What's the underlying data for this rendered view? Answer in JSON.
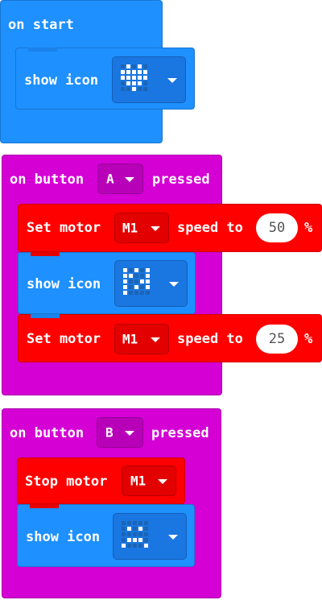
{
  "colors": {
    "basic_blue": "#1e90ff",
    "input_purple": "#d400d4",
    "motor_red": "#ff0000",
    "dropdown_blue": "#1a76e0",
    "dropdown_red": "#e30000",
    "dropdown_purple": "#b800b8"
  },
  "on_start": {
    "label": "on start",
    "show_icon": {
      "label": "show icon",
      "icon": "heart-icon",
      "pattern": [
        [
          0,
          1,
          0,
          1,
          0
        ],
        [
          1,
          1,
          1,
          1,
          1
        ],
        [
          1,
          1,
          1,
          1,
          1
        ],
        [
          0,
          1,
          1,
          1,
          0
        ],
        [
          0,
          0,
          1,
          0,
          0
        ]
      ]
    }
  },
  "button_a": {
    "prefix": "on button",
    "button": "A",
    "suffix": "pressed",
    "set_motor_1": {
      "label": "Set motor",
      "motor": "M1",
      "speed_label": "speed to",
      "speed": "50",
      "unit": "%"
    },
    "show_icon": {
      "label": "show icon",
      "icon": "custom-pattern-icon",
      "pattern": [
        [
          1,
          0,
          1,
          0,
          1
        ],
        [
          1,
          1,
          0,
          0,
          1
        ],
        [
          1,
          0,
          0,
          1,
          1
        ],
        [
          1,
          0,
          1,
          0,
          1
        ],
        [
          1,
          0,
          0,
          0,
          0
        ]
      ]
    },
    "set_motor_2": {
      "label": "Set motor",
      "motor": "M1",
      "speed_label": "speed to",
      "speed": "25",
      "unit": "%"
    }
  },
  "button_b": {
    "prefix": "on button",
    "button": "B",
    "suffix": "pressed",
    "stop_motor": {
      "label": "Stop motor",
      "motor": "M1"
    },
    "show_icon": {
      "label": "show icon",
      "icon": "sad-face-icon",
      "pattern": [
        [
          0,
          0,
          0,
          0,
          0
        ],
        [
          0,
          1,
          0,
          1,
          0
        ],
        [
          0,
          0,
          0,
          0,
          0
        ],
        [
          0,
          1,
          1,
          1,
          0
        ],
        [
          1,
          0,
          0,
          0,
          1
        ]
      ]
    }
  }
}
